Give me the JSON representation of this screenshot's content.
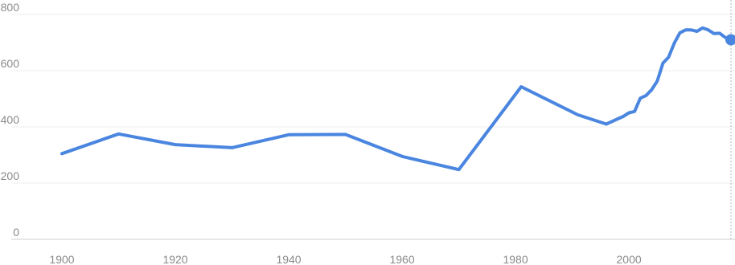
{
  "chart_data": {
    "type": "line",
    "title": "",
    "xlabel": "",
    "ylabel": "",
    "xlim": [
      1900,
      2018
    ],
    "ylim": [
      0,
      800
    ],
    "x_ticks": [
      1900,
      1920,
      1940,
      1960,
      1980,
      2000
    ],
    "y_ticks": [
      0,
      200,
      400,
      600,
      800
    ],
    "grid": "horizontal",
    "legend": "none",
    "color": "#4a86e0",
    "series": [
      {
        "x": [
          1900,
          1910,
          1920,
          1930,
          1940,
          1950,
          1960,
          1970,
          1981,
          1991,
          1996,
          1999,
          2000,
          2001,
          2002,
          2003,
          2004,
          2005,
          2006,
          2007,
          2008,
          2009,
          2010,
          2011,
          2012,
          2013,
          2014,
          2015,
          2016,
          2017,
          2018
        ],
        "y": [
          305,
          375,
          337,
          326,
          372,
          373,
          295,
          248,
          543,
          443,
          410,
          437,
          450,
          455,
          502,
          511,
          532,
          563,
          627,
          648,
          698,
          735,
          745,
          745,
          740,
          752,
          745,
          732,
          733,
          718,
          710
        ]
      }
    ],
    "highlight": {
      "x": 2018,
      "y": 710
    }
  }
}
